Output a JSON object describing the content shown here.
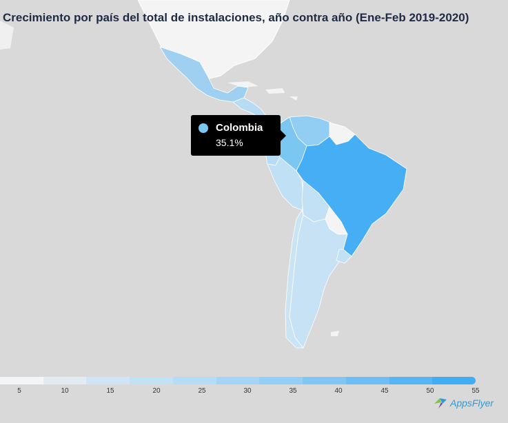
{
  "title": "Crecimiento por país del total de instalaciones, año contra año (Ene-Feb 2019-2020)",
  "tooltip": {
    "country": "Colombia",
    "value": "35.1%",
    "color": "#7cc6f2"
  },
  "legend": {
    "ticks": [
      "5",
      "10",
      "15",
      "20",
      "25",
      "30",
      "35",
      "40",
      "45",
      "50",
      "55"
    ],
    "colors": [
      "#f3f5f7",
      "#e3ecf3",
      "#cfe4f4",
      "#c2e1f5",
      "#b4dcf6",
      "#a4d5f6",
      "#92cef5",
      "#7fc6f4",
      "#6cbef4",
      "#56b5f5",
      "#41adf5"
    ]
  },
  "countries": [
    {
      "name": "Mexico",
      "color": "#9fd0f2"
    },
    {
      "name": "Colombia",
      "color": "#7cc6f2"
    },
    {
      "name": "Venezuela",
      "color": "#92cdf3"
    },
    {
      "name": "Brazil",
      "color": "#45aef5"
    },
    {
      "name": "Peru",
      "color": "#bfe0f5"
    },
    {
      "name": "Bolivia",
      "color": "#c3e1f5"
    },
    {
      "name": "Chile",
      "color": "#c9e4f5"
    },
    {
      "name": "Argentina",
      "color": "#c7e2f4"
    },
    {
      "name": "Ecuador",
      "color": "#b8dcf5"
    },
    {
      "name": "Uruguay",
      "color": "#c2e1f5"
    }
  ],
  "logo": {
    "text": "AppsFlyer"
  }
}
